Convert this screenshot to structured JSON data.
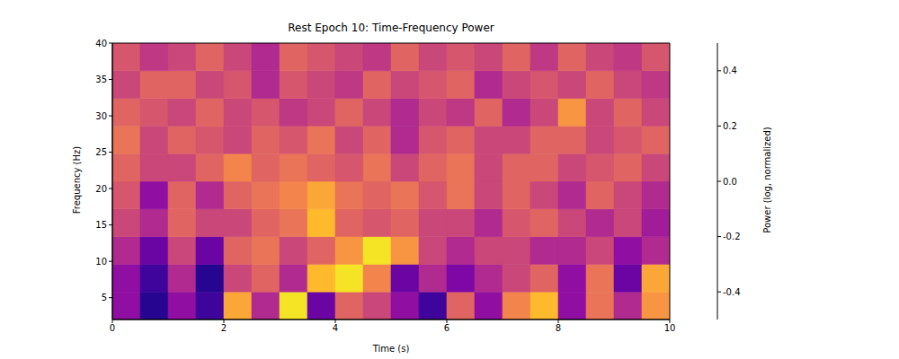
{
  "chart_data": {
    "type": "heatmap",
    "title": "Rest Epoch 10: Time-Frequency Power",
    "x_label": "Time (s)",
    "y_label": "Frequency (Hz)",
    "xlim": [
      0,
      10
    ],
    "ylim": [
      2,
      40
    ],
    "xticks": [
      0,
      2,
      4,
      6,
      8,
      10
    ],
    "yticks": [
      5,
      10,
      15,
      20,
      25,
      30,
      35,
      40
    ],
    "x_bins": [
      0,
      0.5,
      1,
      1.5,
      2,
      2.5,
      3,
      3.5,
      4,
      4.5,
      5,
      5.5,
      6,
      6.5,
      7,
      7.5,
      8,
      8.5,
      9,
      9.5,
      10
    ],
    "y_bins": [
      2,
      5.8,
      9.6,
      13.4,
      17.2,
      21,
      24.8,
      28.6,
      32.4,
      36.2,
      40
    ],
    "cells": [
      [
        -0.2,
        -0.45,
        -0.2,
        -0.4,
        0.3,
        -0.1,
        0.45,
        -0.3,
        0.1,
        0.0,
        -0.2,
        -0.4,
        0.1,
        -0.2,
        0.2,
        0.35,
        -0.2,
        0.15,
        -0.1,
        0.25
      ],
      [
        -0.2,
        -0.4,
        -0.1,
        -0.45,
        0.0,
        0.1,
        -0.1,
        0.35,
        0.45,
        0.2,
        -0.3,
        -0.1,
        -0.25,
        -0.1,
        0.0,
        0.1,
        -0.2,
        0.15,
        -0.3,
        0.3
      ],
      [
        -0.1,
        -0.3,
        0.0,
        -0.3,
        0.1,
        0.15,
        0.0,
        0.1,
        0.25,
        0.45,
        0.25,
        0.0,
        -0.1,
        0.0,
        0.0,
        -0.1,
        -0.1,
        0.0,
        -0.2,
        -0.1
      ],
      [
        0.0,
        -0.1,
        0.1,
        0.0,
        0.0,
        0.1,
        0.15,
        0.35,
        0.1,
        0.05,
        0.1,
        0.0,
        0.0,
        -0.1,
        0.05,
        0.1,
        0.0,
        -0.1,
        0.0,
        -0.15
      ],
      [
        0.05,
        -0.2,
        0.1,
        -0.1,
        0.1,
        0.15,
        0.2,
        0.3,
        0.15,
        0.1,
        0.15,
        0.05,
        0.15,
        0.0,
        0.1,
        0.0,
        -0.1,
        0.1,
        0.0,
        -0.1
      ],
      [
        0.1,
        0.0,
        0.0,
        0.1,
        0.2,
        0.1,
        0.15,
        0.1,
        0.05,
        0.15,
        0.0,
        0.1,
        0.15,
        0.0,
        0.1,
        0.1,
        0.0,
        0.05,
        0.1,
        0.0
      ],
      [
        0.15,
        0.0,
        0.1,
        0.05,
        0.0,
        0.1,
        0.05,
        0.15,
        0.0,
        0.1,
        -0.1,
        0.05,
        0.1,
        0.0,
        0.0,
        0.1,
        0.1,
        0.0,
        0.05,
        0.1
      ],
      [
        0.1,
        0.05,
        0.0,
        0.1,
        0.0,
        0.05,
        -0.05,
        0.0,
        0.1,
        0.0,
        -0.1,
        0.0,
        -0.05,
        0.1,
        -0.1,
        0.0,
        0.25,
        0.0,
        0.1,
        0.0
      ],
      [
        0.0,
        0.1,
        0.1,
        0.0,
        0.05,
        -0.1,
        0.05,
        0.0,
        -0.05,
        0.1,
        0.0,
        0.05,
        0.1,
        -0.1,
        0.0,
        0.05,
        0.0,
        0.1,
        0.0,
        -0.05
      ],
      [
        0.05,
        -0.05,
        0.0,
        0.1,
        0.0,
        -0.1,
        0.1,
        0.05,
        0.0,
        -0.05,
        0.1,
        0.0,
        0.05,
        0.0,
        0.1,
        -0.05,
        0.1,
        0.0,
        -0.05,
        0.05
      ]
    ],
    "colorbar": {
      "label": "Power (log, normalized)",
      "range": [
        -0.5,
        0.5
      ],
      "ticks": [
        -0.4,
        -0.2,
        {
          "value": 0,
          "label": "0.0"
        },
        0.2,
        0.4
      ]
    }
  }
}
